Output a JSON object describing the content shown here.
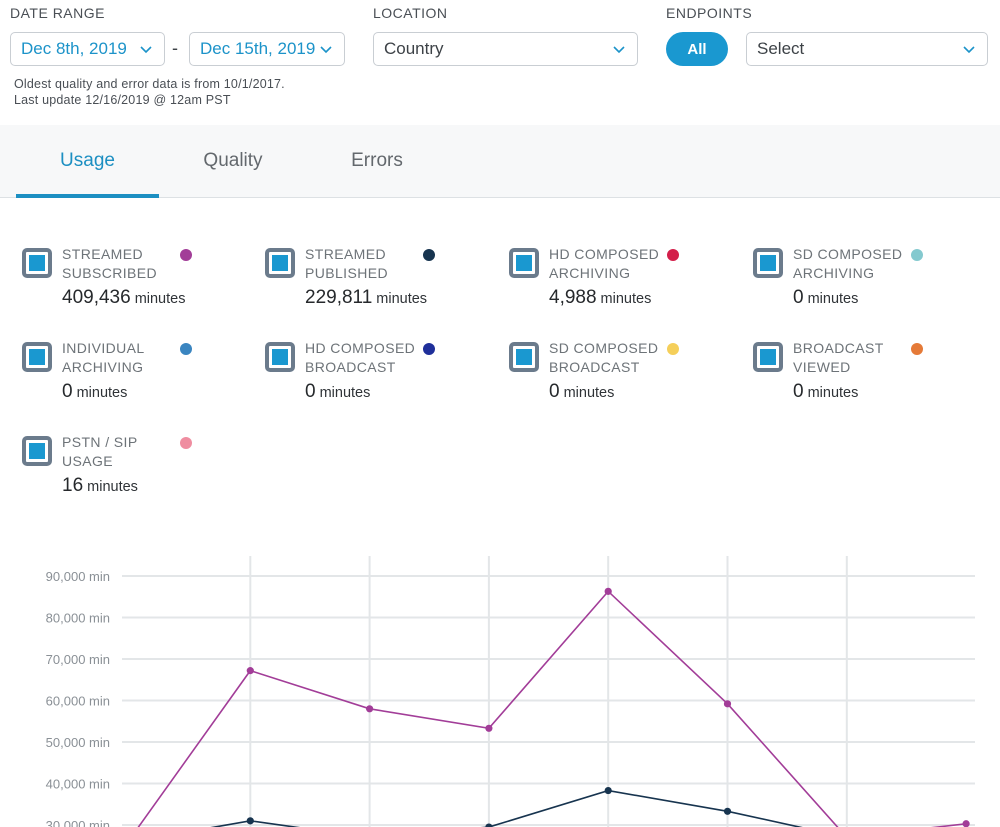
{
  "filters": {
    "date_range": {
      "label": "DATE RANGE",
      "start": "Dec 8th, 2019",
      "separator": "-",
      "end": "Dec 15th, 2019"
    },
    "location": {
      "label": "LOCATION",
      "value": "Country"
    },
    "endpoints": {
      "label": "ENDPOINTS",
      "all_label": "All",
      "select_value": "Select"
    },
    "note_line1": "Oldest quality and error data is from 10/1/2017.",
    "note_line2": "Last update 12/16/2019 @ 12am PST"
  },
  "tabs": [
    {
      "label": "Usage",
      "active": true
    },
    {
      "label": "Quality",
      "active": false
    },
    {
      "label": "Errors",
      "active": false
    }
  ],
  "metrics": [
    {
      "line1": "STREAMED",
      "line2": "SUBSCRIBED",
      "value": "409,436",
      "unit": "minutes",
      "color": "#a23d98",
      "checked": true
    },
    {
      "line1": "STREAMED",
      "line2": "PUBLISHED",
      "value": "229,811",
      "unit": "minutes",
      "color": "#17344f",
      "checked": true
    },
    {
      "line1": "HD COMPOSED",
      "line2": "ARCHIVING",
      "value": "4,988",
      "unit": "minutes",
      "color": "#d31f4a",
      "checked": true
    },
    {
      "line1": "SD COMPOSED",
      "line2": "ARCHIVING",
      "value": "0",
      "unit": "minutes",
      "color": "#84c9cf",
      "checked": true
    },
    {
      "line1": "INDIVIDUAL",
      "line2": "ARCHIVING",
      "value": "0",
      "unit": "minutes",
      "color": "#3a85c0",
      "checked": true
    },
    {
      "line1": "HD COMPOSED",
      "line2": "BROADCAST",
      "value": "0",
      "unit": "minutes",
      "color": "#1f2f9a",
      "checked": true
    },
    {
      "line1": "SD COMPOSED",
      "line2": "BROADCAST",
      "value": "0",
      "unit": "minutes",
      "color": "#f5cf5a",
      "checked": true
    },
    {
      "line1": "BROADCAST",
      "line2": "VIEWED",
      "value": "0",
      "unit": "minutes",
      "color": "#e57a38",
      "checked": true
    },
    {
      "line1": "PSTN / SIP",
      "line2": "USAGE",
      "value": "16",
      "unit": "minutes",
      "color": "#ef8da0",
      "checked": true
    }
  ],
  "chart_data": {
    "type": "line",
    "y_unit_suffix": " min",
    "yticks": [
      30000,
      40000,
      50000,
      60000,
      70000,
      80000,
      90000
    ],
    "ytick_labels": [
      "30,000 min",
      "40,000 min",
      "50,000 min",
      "60,000 min",
      "70,000 min",
      "80,000 min",
      "90,000 min"
    ],
    "ylim_visible": [
      30000,
      90000
    ],
    "grid": true,
    "x_points": 8,
    "series": [
      {
        "values": [
          27000,
          67200,
          58000,
          53300,
          86300,
          59200,
          27000,
          30300
        ],
        "color": "#a23d98"
      },
      {
        "values": [
          26000,
          31000,
          27000,
          29500,
          38300,
          33300,
          27000,
          27000
        ],
        "color": "#17344f"
      }
    ]
  }
}
